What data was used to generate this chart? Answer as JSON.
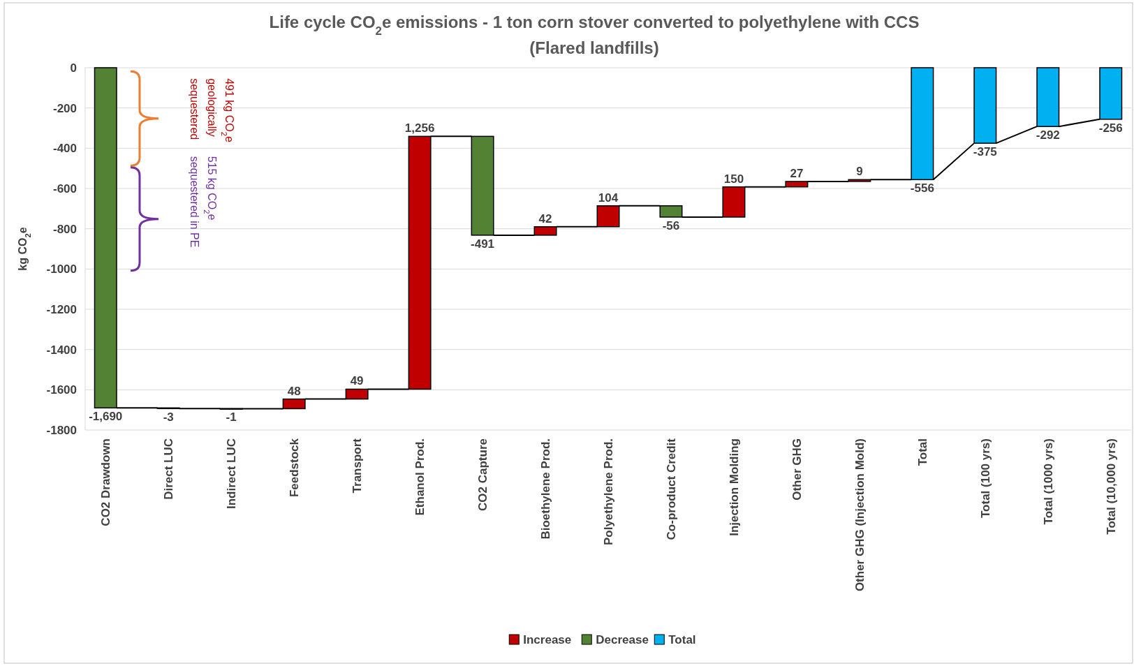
{
  "chart_data": {
    "type": "bar",
    "title": "Life cycle CO$_{2}$e emissions - 1 ton corn stover converted to polyethylene with CCS",
    "subtitle": "(Flared landfills)",
    "ylabel": "kg CO$_{2}$e",
    "categories": [
      "CO2 Drawdown",
      "Direct LUC",
      "Indirect LUC",
      "Feedstock",
      "Transport",
      "Ethanol Prod.",
      "CO2 Capture",
      "Bioethylene Prod.",
      "Polyethylene Prod.",
      "Co-product Credit",
      "Injection Molding",
      "Other GHG",
      "Other GHG (Injection Mold)",
      "Total",
      "Total (100 yrs)",
      "Total (1000 yrs)",
      "Total (10,000 yrs)"
    ],
    "series": [
      {
        "name": "Increase",
        "color": "#c00000",
        "base": [
          null,
          null,
          null,
          -1694,
          -1646,
          -1597,
          null,
          -832,
          -790,
          null,
          -742,
          -592,
          -565,
          null,
          null,
          null,
          null
        ],
        "values": [
          null,
          null,
          null,
          48,
          49,
          1256,
          null,
          42,
          104,
          null,
          150,
          27,
          9,
          null,
          null,
          null,
          null
        ],
        "value_labels": [
          null,
          null,
          null,
          "48",
          "49",
          "1,256",
          null,
          "42",
          "104",
          null,
          "150",
          "27",
          "9",
          null,
          null,
          null,
          null
        ]
      },
      {
        "name": "Decrease",
        "color": "#548235",
        "base": [
          0,
          -1690,
          -1693,
          null,
          null,
          null,
          -341,
          null,
          null,
          -686,
          null,
          null,
          null,
          null,
          null,
          null,
          null
        ],
        "values": [
          -1690,
          -3,
          -1,
          null,
          null,
          null,
          -491,
          null,
          null,
          -56,
          null,
          null,
          null,
          null,
          null,
          null,
          null
        ],
        "value_labels": [
          "-1,690",
          "-3",
          "-1",
          null,
          null,
          null,
          "-491",
          null,
          null,
          "-56",
          null,
          null,
          null,
          null,
          null,
          null,
          null
        ]
      },
      {
        "name": "Total",
        "color": "#00b0f0",
        "base": [
          null,
          null,
          null,
          null,
          null,
          null,
          null,
          null,
          null,
          null,
          null,
          null,
          null,
          0,
          0,
          0,
          0
        ],
        "values": [
          null,
          null,
          null,
          null,
          null,
          null,
          null,
          null,
          null,
          null,
          null,
          null,
          null,
          -556,
          -375,
          -292,
          -256
        ],
        "value_labels": [
          null,
          null,
          null,
          null,
          null,
          null,
          null,
          null,
          null,
          null,
          null,
          null,
          null,
          "-556",
          "-375",
          "-292",
          "-256"
        ]
      }
    ],
    "ylim": [
      -1800,
      0
    ],
    "yticks": [
      -1800,
      -1600,
      -1400,
      -1200,
      -1000,
      -800,
      -600,
      -400,
      -200,
      0
    ],
    "grid": "y",
    "legend": "bottom",
    "annotations": [
      "491 kg CO$_{2}$e geologically sequestered",
      "515 kg CO$_{2}$e sequestered in PE"
    ]
  }
}
